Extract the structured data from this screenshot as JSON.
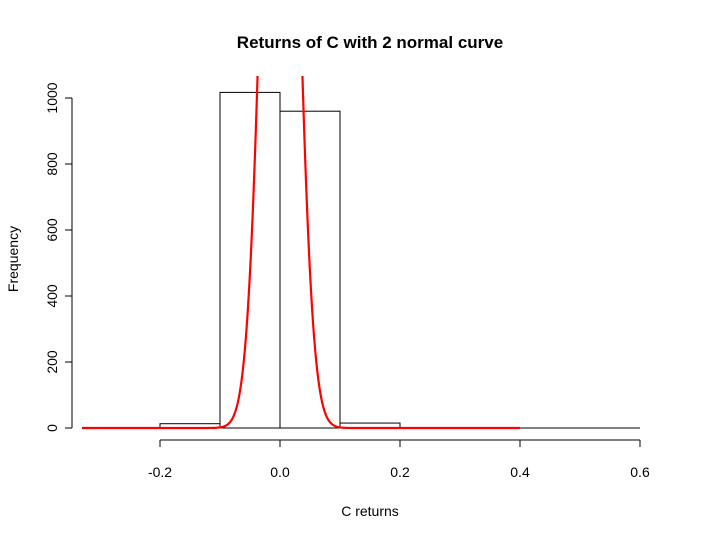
{
  "chart_data": {
    "type": "bar",
    "title": "Returns of C with 2 normal curve",
    "xlabel": "C returns",
    "ylabel": "Frequency",
    "xlim": [
      -0.32,
      0.6
    ],
    "ylim": [
      0,
      1000
    ],
    "x_ticks": [
      "-0.2",
      "0.0",
      "0.2",
      "0.4",
      "0.6"
    ],
    "y_ticks": [
      "0",
      "200",
      "400",
      "600",
      "800",
      "1000"
    ],
    "x_tick_values": [
      -0.2,
      0.0,
      0.2,
      0.4,
      0.6
    ],
    "y_tick_values": [
      0,
      200,
      400,
      600,
      800,
      1000
    ],
    "bins": [
      {
        "x0": -0.3,
        "x1": -0.2,
        "value": 0
      },
      {
        "x0": -0.2,
        "x1": -0.1,
        "value": 13
      },
      {
        "x0": -0.1,
        "x1": 0.0,
        "value": 1017
      },
      {
        "x0": 0.0,
        "x1": 0.1,
        "value": 960
      },
      {
        "x0": 0.1,
        "x1": 0.2,
        "value": 15
      },
      {
        "x0": 0.2,
        "x1": 0.3,
        "value": 0
      },
      {
        "x0": 0.3,
        "x1": 0.4,
        "value": 0
      },
      {
        "x0": 0.4,
        "x1": 0.5,
        "value": 0
      },
      {
        "x0": 0.5,
        "x1": 0.6,
        "value": 0
      }
    ],
    "curve": {
      "color": "#ff0000",
      "x_range": [
        -0.33,
        0.4
      ],
      "mean": 0.0,
      "sd": 0.026,
      "peak_frequency": 3000
    },
    "grid": false,
    "bar_fill": "#ffffff",
    "bar_stroke": "#000000"
  }
}
